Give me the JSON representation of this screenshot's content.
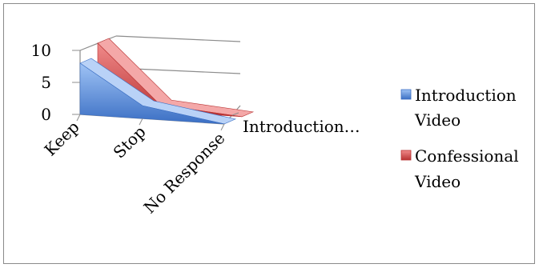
{
  "chart_data": {
    "type": "area",
    "view": "3d",
    "title": "",
    "categories": [
      "Keep",
      "Stop",
      "No Response"
    ],
    "depth_labels": [
      "Introduction…"
    ],
    "y_ticks": [
      "0",
      "5",
      "10"
    ],
    "ylim": [
      0,
      10
    ],
    "grid": true,
    "legend_position": "right",
    "series": [
      {
        "name_line1": "Introduction",
        "name_line2": "Video",
        "values": [
          8,
          2,
          0
        ],
        "color": "#5b8ddb"
      },
      {
        "name_line1": "Confessional",
        "name_line2": "Video",
        "values": [
          10,
          1,
          0
        ],
        "color": "#d64545"
      }
    ]
  }
}
